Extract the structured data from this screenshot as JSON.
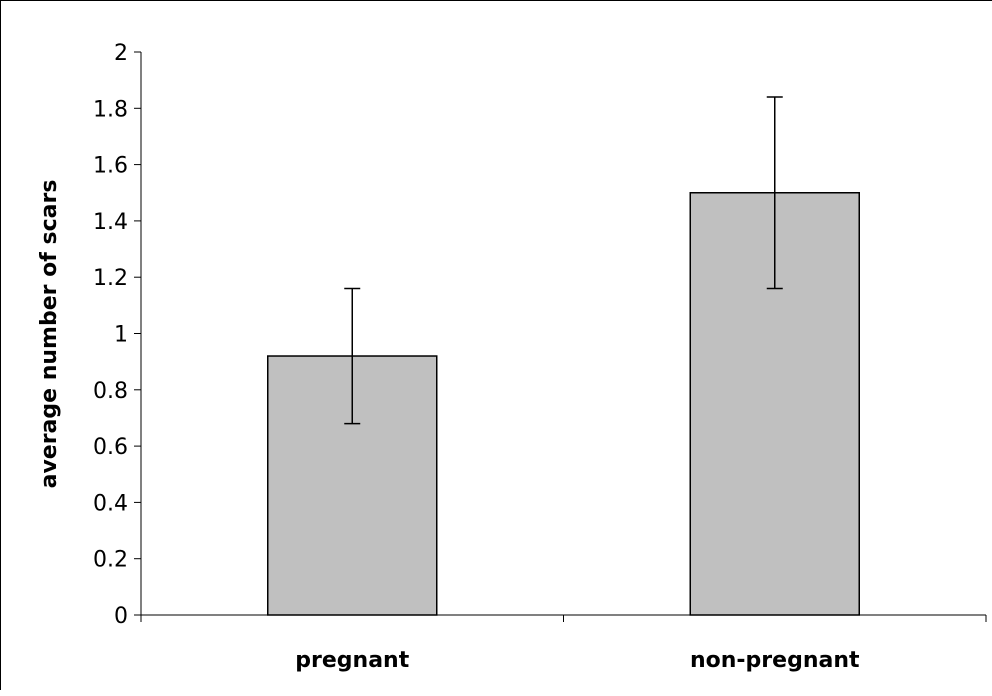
{
  "chart_data": {
    "type": "bar",
    "title": "",
    "xlabel": "",
    "ylabel": "average number of scars",
    "categories": [
      "pregnant",
      "non-pregnant"
    ],
    "values": [
      0.92,
      1.5
    ],
    "error_low": [
      0.68,
      1.16
    ],
    "error_high": [
      1.16,
      1.84
    ],
    "ylim": [
      0,
      2
    ],
    "yticks": [
      "0",
      "0.2",
      "0.4",
      "0.6",
      "0.8",
      "1",
      "1.2",
      "1.4",
      "1.6",
      "1.8",
      "2"
    ],
    "grid": false,
    "legend": "none",
    "bar_color": "#c0c0c0",
    "bar_edge_color": "#000000"
  }
}
